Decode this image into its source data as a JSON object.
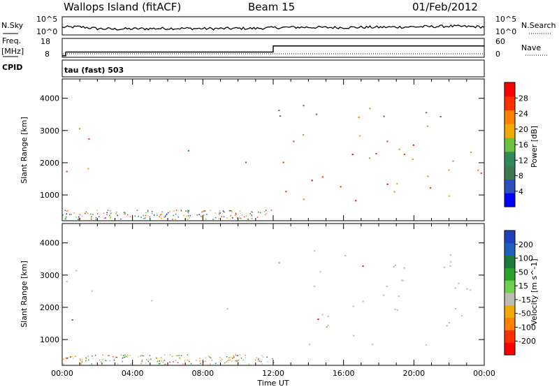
{
  "header": {
    "site": "Wallops Island (fitACF)",
    "beam": "Beam 15",
    "date": "01/Feb/2012"
  },
  "summary_panels": {
    "nsky_label": "N.Sky",
    "nsky_ticks": [
      "10^5",
      "10^0"
    ],
    "nsearch_label": "N.Search",
    "freq_label": "Freq.",
    "freq_unit": "[MHz]",
    "freq_ticks": [
      "18",
      "8"
    ],
    "nave_label": "Nave",
    "nave_ticks": [
      "60",
      "0"
    ],
    "cpid_label": "CPID",
    "cpid_value": "tau (fast) 503"
  },
  "colors": {
    "frame": "#000000",
    "power_scale": [
      "#0000ff",
      "#2a52be",
      "#3c7a50",
      "#2e8b57",
      "#6fbf3f",
      "#f2a900",
      "#ff7f00",
      "#ff3000",
      "#ff0000"
    ],
    "velocity_scale": [
      "#2040c0",
      "#1f5fbf",
      "#1d7a3a",
      "#2aa32a",
      "#6fd04f",
      "#bdbdb6",
      "#f2a900",
      "#ff7f00",
      "#ff3000",
      "#ff0000"
    ],
    "ground_scatter": "#bdbdb6"
  },
  "chart_data": [
    {
      "type": "line",
      "name": "N.Sky / N.Search",
      "x": [
        0,
        1,
        2,
        3,
        4,
        5,
        6,
        7,
        8,
        9,
        10,
        11,
        12,
        13,
        14,
        15,
        16,
        17,
        18,
        19,
        20,
        21,
        22,
        23,
        24
      ],
      "series": [
        {
          "values": [
            2.8,
            3.0,
            2.2,
            2.0,
            2.1,
            2.2,
            2.3,
            2.3,
            2.2,
            2.2,
            2.3,
            2.3,
            2.6,
            2.8,
            2.8,
            2.7,
            2.7,
            2.8,
            2.8,
            2.9,
            3.0,
            3.1,
            3.3,
            3.1,
            3.0
          ]
        }
      ],
      "y_ticks": [
        "10^5",
        "10^0"
      ],
      "xlim": [
        0,
        24
      ]
    },
    {
      "type": "line",
      "name": "Freq / Nave",
      "x": [
        0,
        0.2,
        11.95,
        12.0,
        24
      ],
      "series": [
        {
          "values": [
            8.5,
            10.6,
            10.6,
            14.1,
            14.1
          ]
        }
      ],
      "ylim": [
        8,
        18
      ],
      "xlim": [
        0,
        24
      ]
    },
    {
      "type": "heatmap",
      "title": "Power",
      "ylabel": "Slant Range [km]",
      "colorbar_label": "Power [dB]",
      "colorbar_ticks": [
        "28",
        "24",
        "20",
        "16",
        "12",
        "8",
        "4"
      ],
      "x_ticks": [
        "00:00",
        "04:00",
        "08:00",
        "12:00",
        "16:00",
        "20:00",
        "00:00"
      ],
      "y_ticks": [
        "4000",
        "3000",
        "2000",
        "1000"
      ],
      "xlim": [
        0,
        24
      ],
      "ylim": [
        200,
        4600
      ],
      "regions": [
        {
          "x": [
            0.0,
            1.8
          ],
          "y": [
            1300,
            3300
          ],
          "level": 20
        },
        {
          "x": [
            5.0,
            7.5
          ],
          "y": [
            2200,
            2450
          ],
          "level": 10
        },
        {
          "x": [
            9.0,
            11.0
          ],
          "y": [
            1900,
            2550
          ],
          "level": 8
        },
        {
          "x": [
            5.5,
            7.5
          ],
          "y": [
            300,
            600
          ],
          "level": 14
        },
        {
          "x": [
            12.0,
            23.0
          ],
          "y": [
            800,
            1800
          ],
          "level": 26
        },
        {
          "x": [
            12.0,
            23.0
          ],
          "y": [
            1900,
            2700
          ],
          "level": 22
        },
        {
          "x": [
            12.0,
            23.0
          ],
          "y": [
            2800,
            3800
          ],
          "level": 14
        },
        {
          "x": [
            21.5,
            24.0
          ],
          "y": [
            1600,
            3400
          ],
          "level": 22
        }
      ]
    },
    {
      "type": "heatmap",
      "title": "Velocity",
      "ylabel": "Slant Range [km]",
      "xlabel": "Time UT",
      "colorbar_label": "Velocity [m s^-1]",
      "colorbar_ticks": [
        "200",
        "100",
        "50",
        "15",
        "-15",
        "-50",
        "-100",
        "-200"
      ],
      "x_ticks": [
        "00:00",
        "04:00",
        "08:00",
        "12:00",
        "16:00",
        "20:00",
        "00:00"
      ],
      "y_ticks": [
        "4000",
        "3000",
        "2000",
        "1000"
      ],
      "xlim": [
        0,
        24
      ],
      "ylim": [
        200,
        4600
      ],
      "regions": [
        {
          "x": [
            0.0,
            1.8
          ],
          "y": [
            1300,
            3300
          ],
          "level": 0
        },
        {
          "x": [
            5.0,
            7.5
          ],
          "y": [
            2200,
            2450
          ],
          "level": 0
        },
        {
          "x": [
            9.0,
            11.0
          ],
          "y": [
            1900,
            2550
          ],
          "level": 0
        },
        {
          "x": [
            0.3,
            1.0
          ],
          "y": [
            550,
            700
          ],
          "level": 40
        },
        {
          "x": [
            12.0,
            23.0
          ],
          "y": [
            800,
            1800
          ],
          "level": 0
        },
        {
          "x": [
            12.0,
            23.0
          ],
          "y": [
            1900,
            2700
          ],
          "level": 0
        },
        {
          "x": [
            12.0,
            23.0
          ],
          "y": [
            2800,
            3800
          ],
          "level": 0
        },
        {
          "x": [
            21.5,
            24.0
          ],
          "y": [
            1600,
            3400
          ],
          "level": 0
        }
      ]
    }
  ]
}
